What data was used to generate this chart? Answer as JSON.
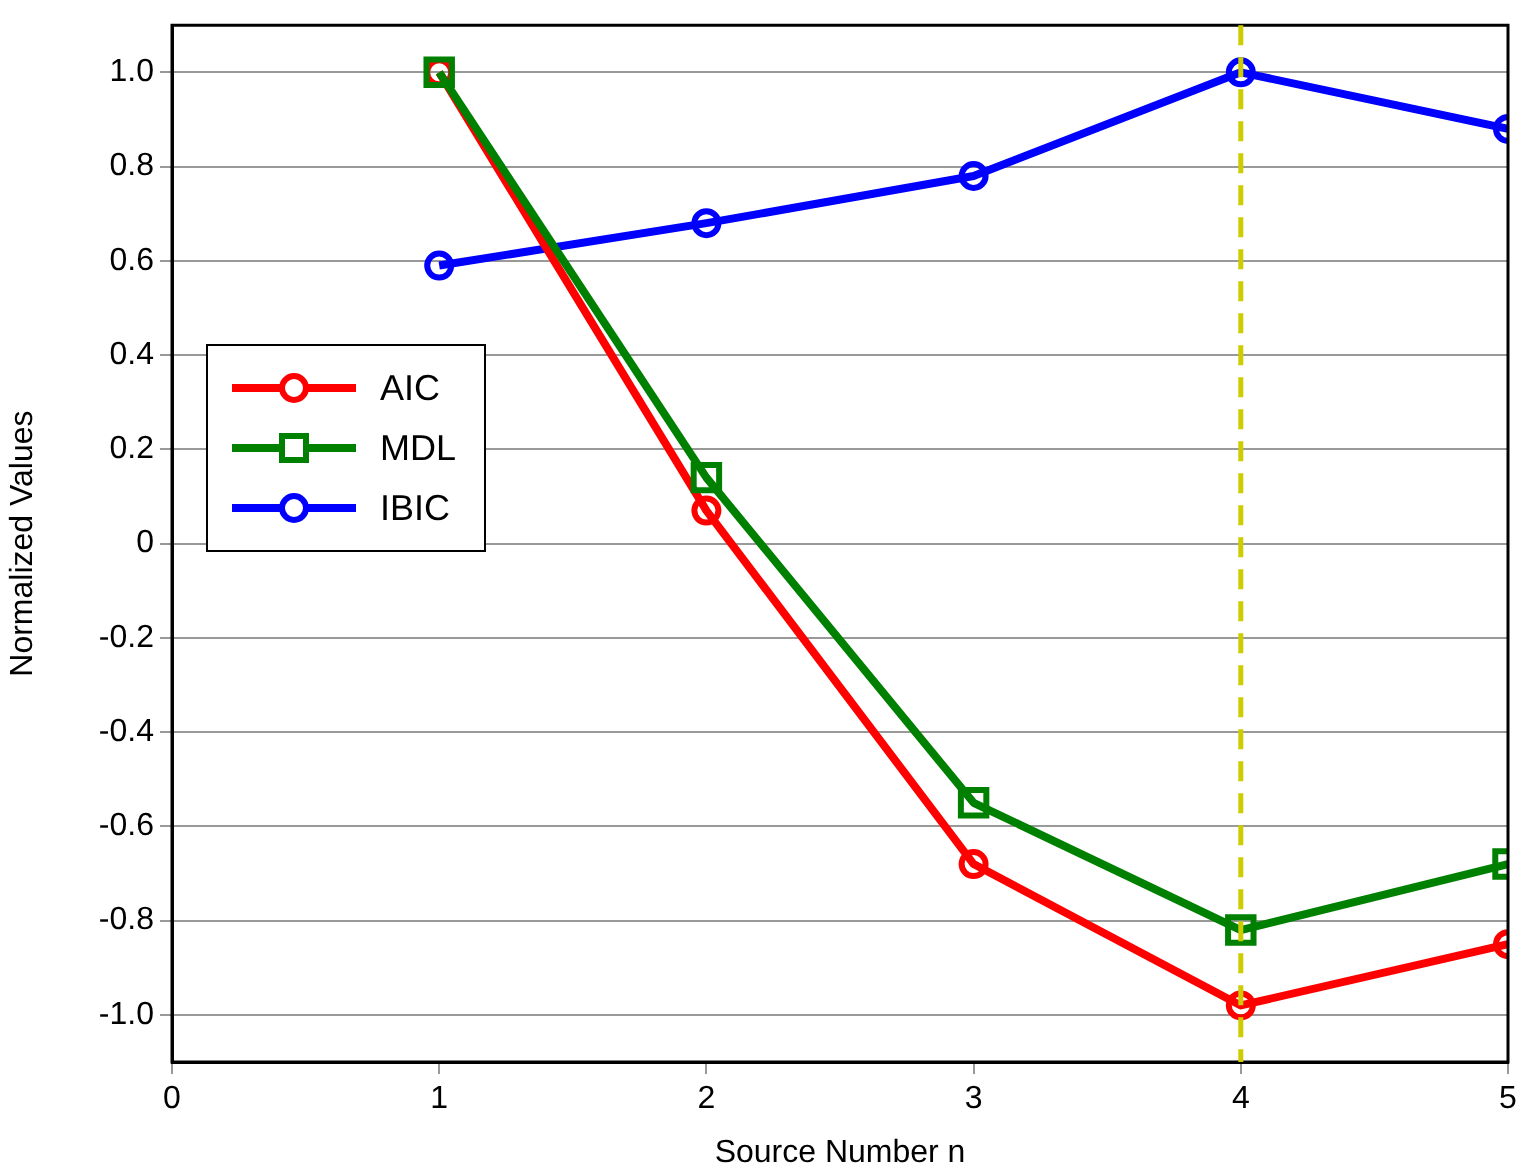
{
  "chart_data": {
    "type": "line",
    "xlabel": "Source Number n",
    "ylabel": "Normalized Values",
    "x": [
      1,
      2,
      3,
      4,
      5
    ],
    "series": [
      {
        "name": "AIC",
        "color": "#ff0000",
        "marker": "circle",
        "values": [
          1.0,
          0.07,
          -0.68,
          -0.98,
          -0.85
        ]
      },
      {
        "name": "MDL",
        "color": "#008000",
        "marker": "square",
        "values": [
          1.0,
          0.14,
          -0.55,
          -0.82,
          -0.68
        ]
      },
      {
        "name": "IBIC",
        "color": "#0000ff",
        "marker": "circle",
        "values": [
          0.59,
          0.68,
          0.78,
          1.0,
          0.88
        ]
      }
    ],
    "xlim": [
      0,
      5
    ],
    "xticks": [
      0,
      1,
      2,
      3,
      4,
      5
    ],
    "ylim": [
      -1.1,
      1.1
    ],
    "yticks": [
      {
        "value": -1,
        "label": "-1.0"
      },
      -0.8,
      -0.6,
      -0.4,
      -0.2,
      0,
      0.2,
      0.4,
      0.6,
      0.8,
      {
        "value": 1,
        "label": "1.0"
      }
    ],
    "grid": "y",
    "legend": "left",
    "line_style": "solid",
    "ref_lines": [
      {
        "axis": "x",
        "value": 4,
        "color": "#cccc00",
        "line_style": "dashed"
      }
    ]
  }
}
